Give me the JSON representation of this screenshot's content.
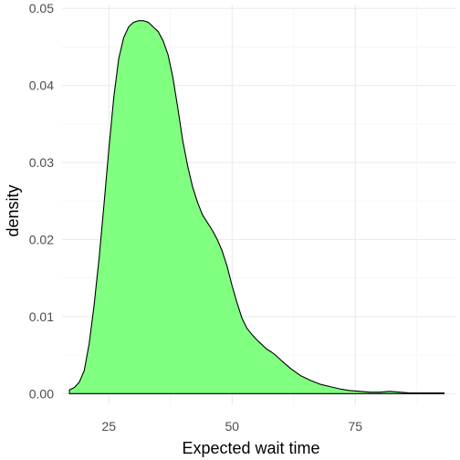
{
  "chart_data": {
    "type": "area",
    "xlabel": "Expected wait time",
    "ylabel": "density",
    "xlim": [
      15.5,
      95.5
    ],
    "ylim": [
      -0.0015,
      0.0505
    ],
    "x_ticks": [
      25,
      50,
      75
    ],
    "y_ticks": [
      0.0,
      0.01,
      0.02,
      0.03,
      0.04,
      0.05
    ],
    "y_tick_labels": [
      "0.00",
      "0.01",
      "0.02",
      "0.03",
      "0.04",
      "0.05"
    ],
    "grid": true,
    "fill_color": "#80ff80",
    "line_color": "#000000",
    "x": [
      17,
      18,
      19,
      20,
      21,
      22,
      23,
      24,
      25,
      26,
      27,
      28,
      29,
      30,
      31,
      32,
      33,
      34,
      35,
      36,
      37,
      38,
      39,
      40,
      41,
      42,
      43,
      44,
      45,
      46,
      47,
      48,
      49,
      50,
      51,
      52,
      53,
      54,
      55,
      56,
      57,
      58,
      59,
      60,
      62,
      64,
      66,
      68,
      70,
      72,
      74,
      76,
      78,
      80,
      82,
      84,
      86,
      88,
      90,
      93
    ],
    "values": [
      0.0005,
      0.0008,
      0.0015,
      0.003,
      0.0065,
      0.0115,
      0.0175,
      0.0245,
      0.0318,
      0.0385,
      0.0435,
      0.0462,
      0.0476,
      0.0482,
      0.0484,
      0.0484,
      0.0482,
      0.0476,
      0.047,
      0.0458,
      0.044,
      0.041,
      0.037,
      0.0328,
      0.0295,
      0.0268,
      0.0248,
      0.0232,
      0.0222,
      0.0212,
      0.02,
      0.0185,
      0.0165,
      0.014,
      0.0118,
      0.0098,
      0.0085,
      0.0077,
      0.007,
      0.0064,
      0.0058,
      0.0054,
      0.0049,
      0.0043,
      0.0032,
      0.0023,
      0.0017,
      0.0012,
      0.0009,
      0.0006,
      0.0004,
      0.0003,
      0.0002,
      0.0002,
      0.0003,
      0.0002,
      0.0001,
      0.0001,
      0.0001,
      0.0001
    ]
  }
}
